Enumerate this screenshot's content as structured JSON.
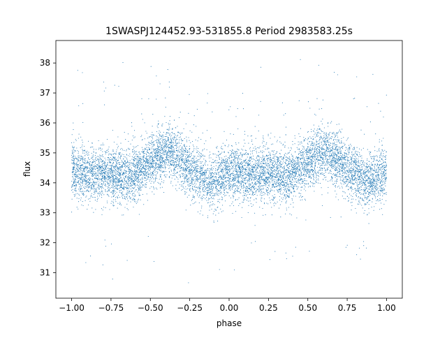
{
  "chart_data": {
    "type": "scatter",
    "title": "1SWASPJ124452.93-531855.8 Period 2983583.25s",
    "xlabel": "phase",
    "ylabel": "flux",
    "xlim": [
      -1.1,
      1.1
    ],
    "ylim": [
      30.15,
      38.75
    ],
    "x_ticks": [
      -1.0,
      -0.75,
      -0.5,
      -0.25,
      0.0,
      0.25,
      0.5,
      0.75,
      1.0
    ],
    "x_tick_labels": [
      "−1.00",
      "−0.75",
      "−0.50",
      "−0.25",
      "0.00",
      "0.25",
      "0.50",
      "0.75",
      "1.00"
    ],
    "y_ticks": [
      31,
      32,
      33,
      34,
      35,
      36,
      37,
      38
    ],
    "y_tick_labels": [
      "31",
      "32",
      "33",
      "34",
      "35",
      "36",
      "37",
      "38"
    ],
    "grid": false,
    "legend": "none",
    "series": [
      {
        "color": "#1f77b4",
        "marker": "point",
        "phase_range": [
          -1.0,
          1.0
        ],
        "trend_phase": [
          -1.0,
          -0.875,
          -0.75,
          -0.625,
          -0.5,
          -0.375,
          -0.25,
          -0.125,
          0.0,
          0.125,
          0.25,
          0.375,
          0.5,
          0.625,
          0.75,
          0.875,
          1.0
        ],
        "trend_flux": [
          34.4,
          34.3,
          34.3,
          34.2,
          34.7,
          35.1,
          34.5,
          34.0,
          34.4,
          34.3,
          34.3,
          34.2,
          34.7,
          35.1,
          34.5,
          34.0,
          34.4
        ],
        "scatter_sd": 0.45,
        "flux_min": 30.5,
        "flux_max": 38.3,
        "n_points": 9000
      }
    ]
  }
}
